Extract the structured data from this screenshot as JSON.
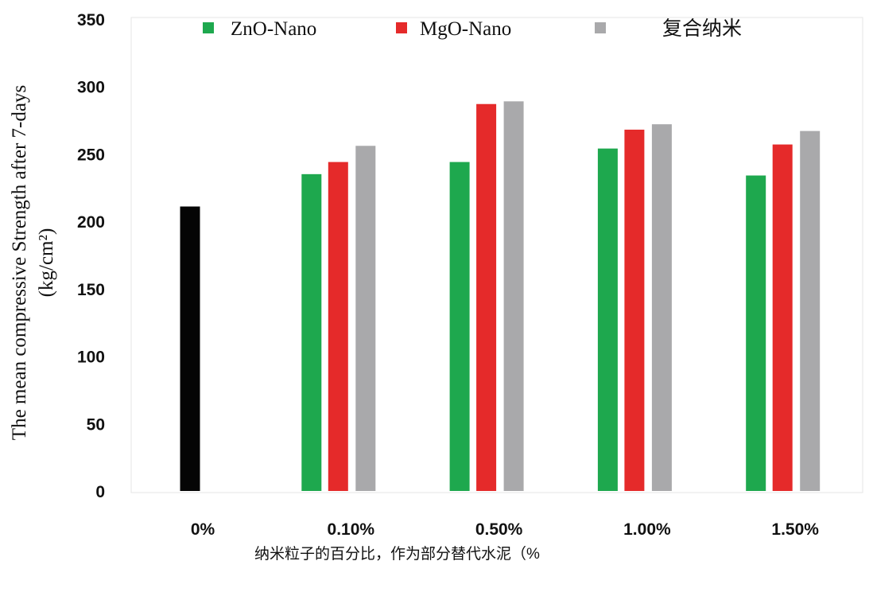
{
  "chart_data": {
    "type": "bar",
    "categories": [
      "0%",
      "0.10%",
      "0.50%",
      "1.00%",
      "1.50%"
    ],
    "series": [
      {
        "name": "ZnO-Nano",
        "color": "#1ea84e",
        "values": [
          null,
          235,
          244,
          254,
          234
        ]
      },
      {
        "name": "MgO-Nano",
        "color": "#e52a2a",
        "values": [
          null,
          244,
          287,
          268,
          257
        ]
      },
      {
        "name": "复合纳米",
        "color": "#a9a9ab",
        "values": [
          null,
          256,
          289,
          272,
          267
        ]
      },
      {
        "name": "",
        "color": "#050505",
        "values": [
          211,
          null,
          null,
          null,
          null
        ]
      }
    ],
    "ylabel_line1": "The mean compressive Strength after 7-days",
    "ylabel_line2": "(kg/cm²)",
    "xlabel": "纳米粒子的百分比，作为部分替代水泥（%",
    "ylim": [
      0,
      350
    ],
    "yticks": [
      0,
      50,
      100,
      150,
      200,
      250,
      300,
      350
    ],
    "grid": false,
    "legend_position": "top"
  }
}
